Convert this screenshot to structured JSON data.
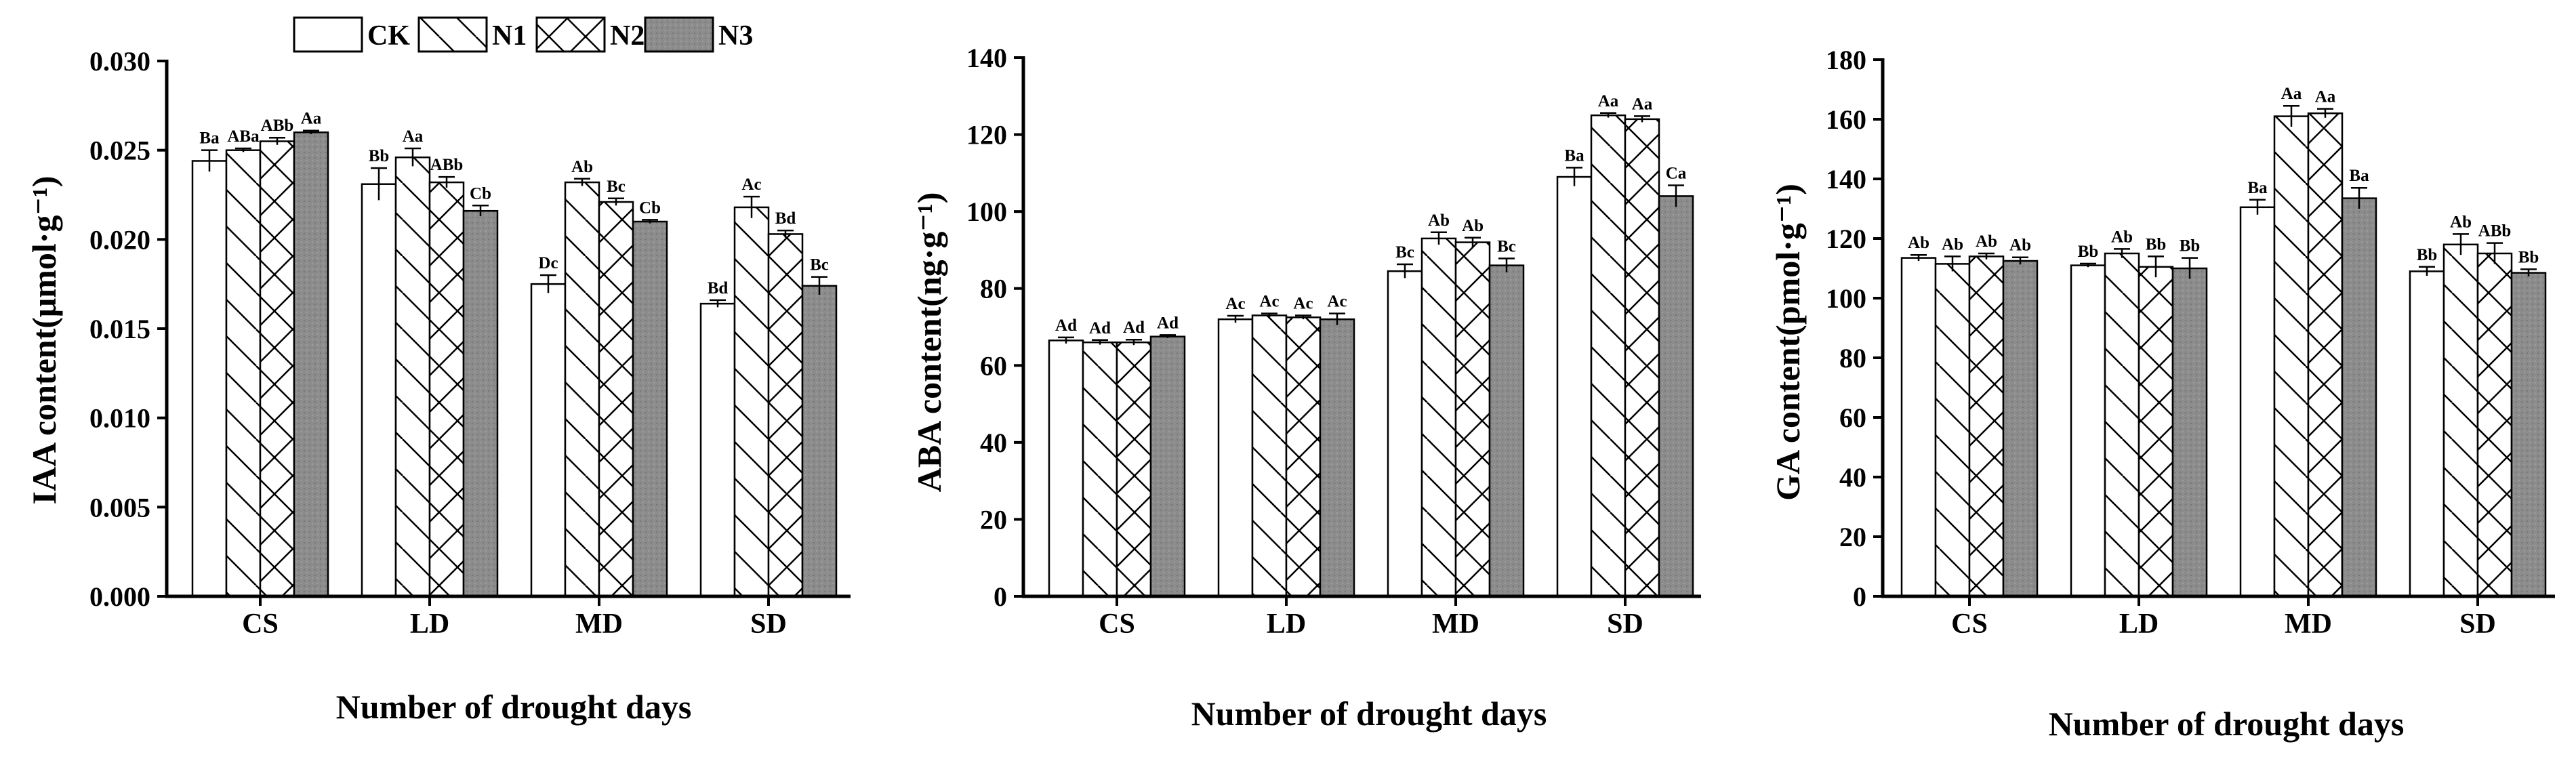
{
  "legend": {
    "series": [
      "CK",
      "N1",
      "N2",
      "N3"
    ],
    "patterns": [
      "blank",
      "diagonal",
      "crosshatch",
      "gray"
    ]
  },
  "colors": {
    "ink": "#000000",
    "bar_fill": "#ffffff",
    "n3_fill": "#8c8c8c"
  },
  "chart_data": [
    {
      "type": "bar",
      "title": "",
      "xlabel": "Number of drought days",
      "ylabel": "IAA content(μmol·g⁻¹)",
      "categories": [
        "CS",
        "LD",
        "MD",
        "SD"
      ],
      "ylim": [
        0,
        0.03
      ],
      "yticks": [
        0.0,
        0.005,
        0.01,
        0.015,
        0.02,
        0.025,
        0.03
      ],
      "ytick_labels": [
        "0.000",
        "0.005",
        "0.010",
        "0.015",
        "0.020",
        "0.025",
        "0.030"
      ],
      "series": [
        {
          "name": "CK",
          "values": [
            0.0244,
            0.0231,
            0.0175,
            0.0164
          ],
          "errors": [
            0.0006,
            0.0009,
            0.0005,
            0.0002
          ],
          "labels": [
            "Ba",
            "Bb",
            "Dc",
            "Bd"
          ]
        },
        {
          "name": "N1",
          "values": [
            0.025,
            0.0246,
            0.0232,
            0.0218
          ],
          "errors": [
            0.0001,
            0.0005,
            0.0002,
            0.0006
          ],
          "labels": [
            "ABa",
            "Aa",
            "Ab",
            "Ac"
          ]
        },
        {
          "name": "N2",
          "values": [
            0.0255,
            0.0232,
            0.0221,
            0.0203
          ],
          "errors": [
            0.0002,
            0.0003,
            0.0002,
            0.0002
          ],
          "labels": [
            "ABb",
            "ABb",
            "Bc",
            "Bd"
          ]
        },
        {
          "name": "N3",
          "values": [
            0.026,
            0.0216,
            0.021,
            0.0174
          ],
          "errors": [
            0.0001,
            0.0003,
            0.0001,
            0.0005
          ],
          "labels": [
            "Aa",
            "Cb",
            "Cb",
            "Bc"
          ]
        }
      ]
    },
    {
      "type": "bar",
      "title": "",
      "xlabel": "Number of drought days",
      "ylabel": "ABA content(ng·g⁻¹)",
      "categories": [
        "CS",
        "LD",
        "MD",
        "SD"
      ],
      "ylim": [
        0,
        140
      ],
      "yticks": [
        0,
        20,
        40,
        60,
        80,
        100,
        120,
        140
      ],
      "ytick_labels": [
        "0",
        "20",
        "40",
        "60",
        "80",
        "100",
        "120",
        "140"
      ],
      "series": [
        {
          "name": "CK",
          "values": [
            66.5,
            72.0,
            84.5,
            109.0
          ],
          "errors": [
            0.8,
            0.9,
            1.8,
            2.4
          ],
          "labels": [
            "Ad",
            "Ac",
            "Bc",
            "Ba"
          ]
        },
        {
          "name": "N1",
          "values": [
            66.0,
            73.0,
            93.0,
            125.0
          ],
          "errors": [
            0.6,
            0.5,
            1.6,
            0.6
          ],
          "labels": [
            "Ad",
            "Ac",
            "Ab",
            "Aa"
          ]
        },
        {
          "name": "N2",
          "values": [
            66.0,
            72.5,
            92.0,
            124.0
          ],
          "errors": [
            0.7,
            0.5,
            1.2,
            0.8
          ],
          "labels": [
            "Ad",
            "Ac",
            "Ab",
            "Aa"
          ]
        },
        {
          "name": "N3",
          "values": [
            67.5,
            72.0,
            86.0,
            104.0
          ],
          "errors": [
            0.4,
            1.5,
            1.8,
            2.8
          ],
          "labels": [
            "Ad",
            "Ac",
            "Bc",
            "Ca"
          ]
        }
      ]
    },
    {
      "type": "bar",
      "title": "",
      "xlabel": "Number of drought days",
      "ylabel": "GA content(pmol·g⁻¹)",
      "categories": [
        "CS",
        "LD",
        "MD",
        "SD"
      ],
      "ylim": [
        0,
        180
      ],
      "yticks": [
        0,
        20,
        40,
        60,
        80,
        100,
        120,
        140,
        160,
        180
      ],
      "ytick_labels": [
        "0",
        "20",
        "40",
        "60",
        "80",
        "100",
        "120",
        "140",
        "160",
        "180"
      ],
      "series": [
        {
          "name": "CK",
          "values": [
            113.5,
            111.0,
            130.5,
            109.0
          ],
          "errors": [
            1.0,
            0.6,
            2.5,
            1.5
          ],
          "labels": [
            "Ab",
            "Bb",
            "Ba",
            "Bb"
          ]
        },
        {
          "name": "N1",
          "values": [
            111.5,
            115.0,
            161.0,
            118.0
          ],
          "errors": [
            2.5,
            1.5,
            3.5,
            3.5
          ],
          "labels": [
            "Ab",
            "Ab",
            "Aa",
            "Ab"
          ]
        },
        {
          "name": "N2",
          "values": [
            114.0,
            110.5,
            162.0,
            115.0
          ],
          "errors": [
            1.0,
            3.5,
            1.5,
            3.5
          ],
          "labels": [
            "Ab",
            "Bb",
            "Aa",
            "ABb"
          ]
        },
        {
          "name": "N3",
          "values": [
            112.5,
            110.0,
            133.5,
            108.5
          ],
          "errors": [
            1.2,
            3.5,
            3.5,
            1.2
          ],
          "labels": [
            "Ab",
            "Bb",
            "Ba",
            "Bb"
          ]
        }
      ]
    }
  ]
}
